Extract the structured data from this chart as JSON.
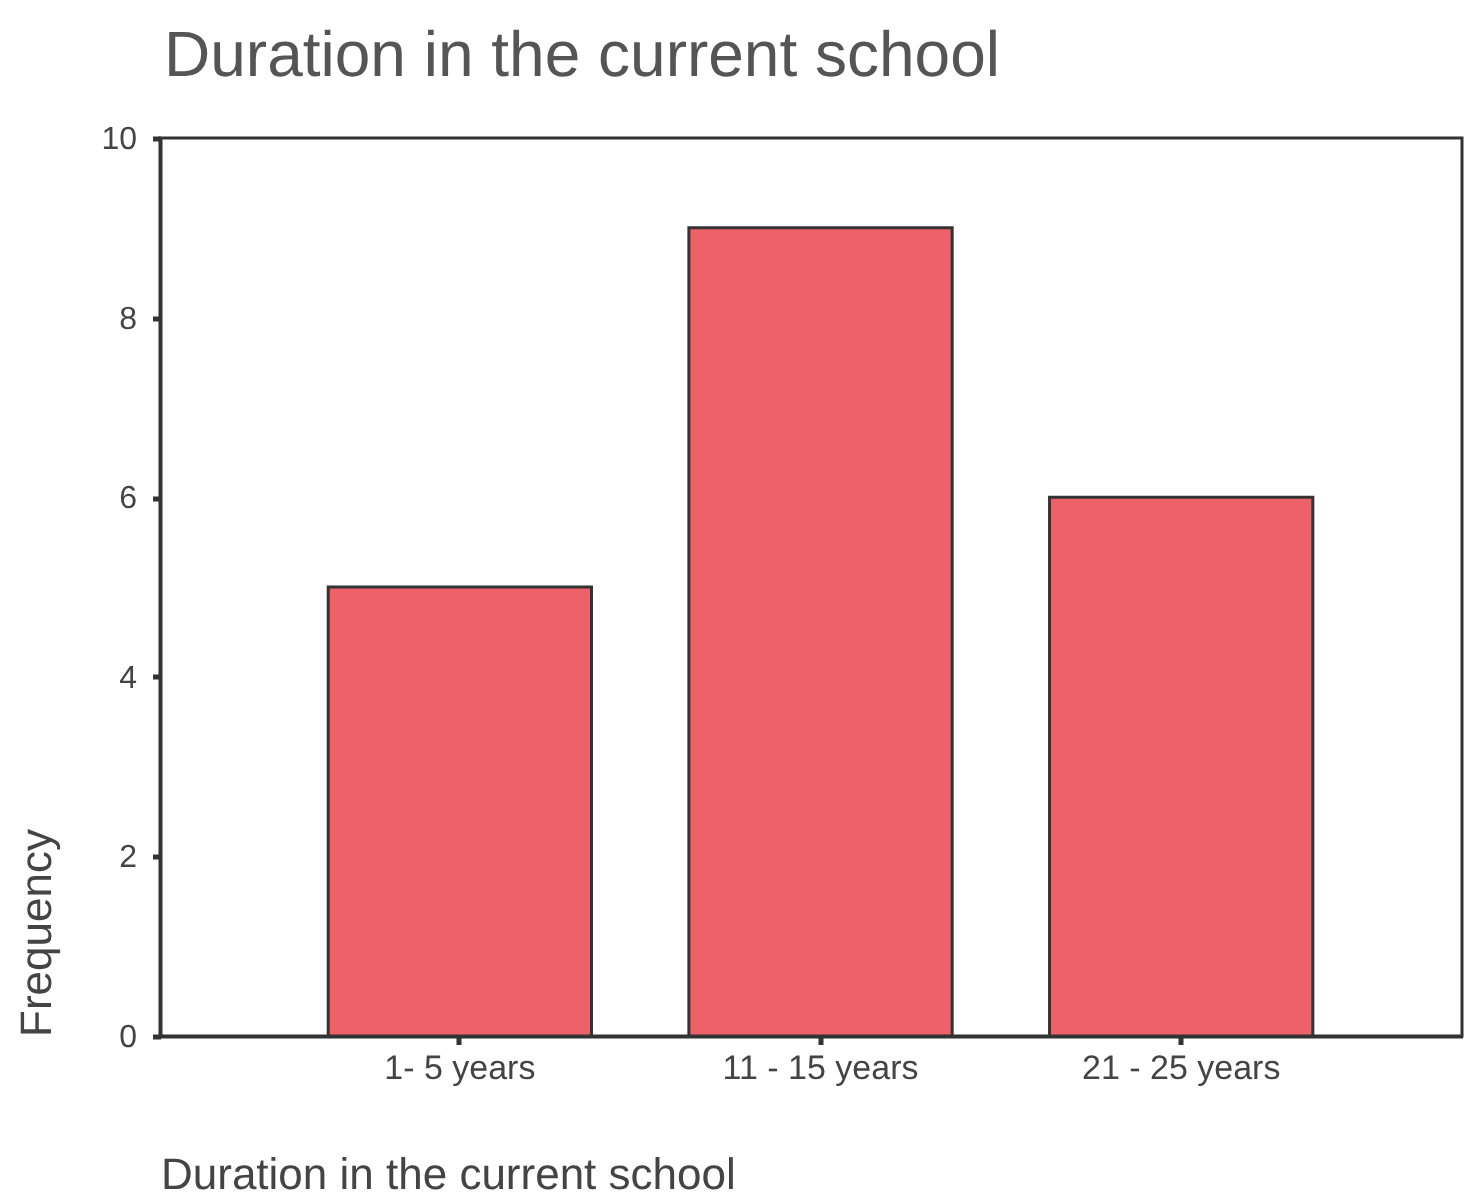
{
  "chart_data": {
    "type": "bar",
    "title": "Duration in the current school",
    "xlabel": "Duration in the current school",
    "ylabel": "Frequency",
    "categories": [
      "1- 5 years",
      "11 - 15 years",
      "21 - 25 years"
    ],
    "values": [
      5,
      9,
      6
    ],
    "color": "#ef6169",
    "ylim": [
      0,
      10
    ],
    "yticks": [
      0,
      2,
      4,
      6,
      8,
      10
    ]
  }
}
